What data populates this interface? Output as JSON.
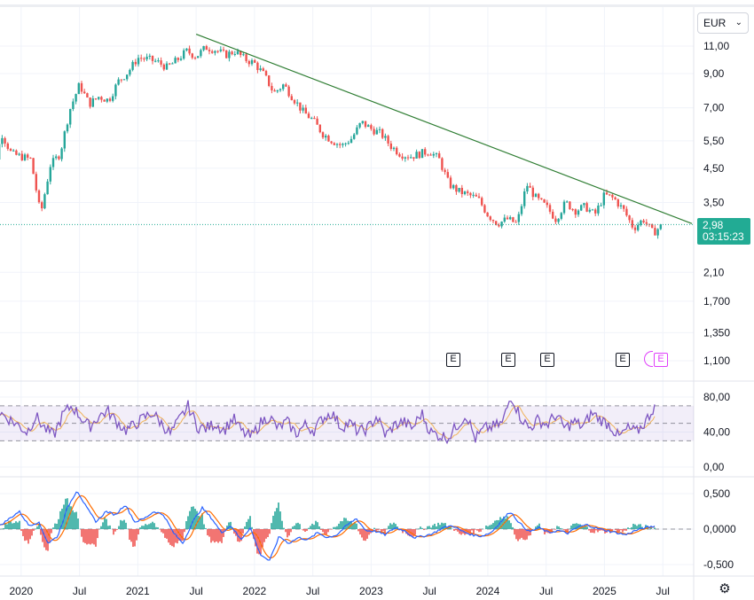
{
  "currency_button": {
    "label": "EUR",
    "chevron_icon": "chevron-down-icon"
  },
  "price_label": {
    "price": "2,98",
    "countdown": "03:15:23"
  },
  "earnings_markers": [
    {
      "label": "E",
      "left": 503
    },
    {
      "label": "E",
      "left": 565
    },
    {
      "label": "E",
      "left": 609
    },
    {
      "label": "E",
      "left": 694
    },
    {
      "label": "E",
      "left": 737,
      "future": true
    }
  ],
  "settings_icon": "gear-icon",
  "colors": {
    "up": "#26a69a",
    "down": "#ef5350",
    "trendline": "#2e7d32",
    "rsi": "#7e57c2",
    "rsi_ma": "#f0b35a",
    "macd": "#2962ff",
    "signal": "#ff6d00",
    "price_tag": "#22ab94"
  },
  "chart_data": [
    {
      "type": "candlestick",
      "title": "",
      "scale": "log",
      "yticks": [
        "11,00",
        "9,00",
        "7,00",
        "5,50",
        "4,50",
        "3,50",
        "2,10",
        "1,700",
        "1,350",
        "1,100"
      ],
      "ytick_values": [
        11.0,
        9.0,
        7.0,
        5.5,
        4.5,
        3.5,
        2.1,
        1.7,
        1.35,
        1.1
      ],
      "xticks": [
        "2020",
        "Jul",
        "2021",
        "Jul",
        "2022",
        "Jul",
        "2023",
        "Jul",
        "2024",
        "Jul",
        "2025",
        "Jul"
      ],
      "xtick_dates": [
        "2020-01",
        "2020-07",
        "2021-01",
        "2021-07",
        "2022-01",
        "2022-07",
        "2023-01",
        "2023-07",
        "2024-01",
        "2024-07",
        "2025-01",
        "2025-07"
      ],
      "x_range": [
        "2019-09",
        "2025-12"
      ],
      "series_close": [
        [
          "2019-09",
          3.6
        ],
        [
          "2019-10",
          4.2
        ],
        [
          "2019-11",
          5.8
        ],
        [
          "2019-12",
          5.0
        ],
        [
          "2020-01",
          4.9
        ],
        [
          "2020-02",
          4.8
        ],
        [
          "2020-03",
          3.2
        ],
        [
          "2020-04",
          4.6
        ],
        [
          "2020-05",
          5.0
        ],
        [
          "2020-06",
          6.9
        ],
        [
          "2020-07",
          8.3
        ],
        [
          "2020-08",
          7.2
        ],
        [
          "2020-09",
          7.6
        ],
        [
          "2020-10",
          7.4
        ],
        [
          "2020-11",
          8.5
        ],
        [
          "2020-12",
          9.1
        ],
        [
          "2021-01",
          10.1
        ],
        [
          "2021-02",
          10.0
        ],
        [
          "2021-03",
          9.8
        ],
        [
          "2021-04",
          9.4
        ],
        [
          "2021-05",
          9.9
        ],
        [
          "2021-06",
          10.6
        ],
        [
          "2021-07",
          10.2
        ],
        [
          "2021-08",
          10.9
        ],
        [
          "2021-09",
          10.7
        ],
        [
          "2021-10",
          10.3
        ],
        [
          "2021-11",
          10.6
        ],
        [
          "2021-12",
          10.0
        ],
        [
          "2022-01",
          9.7
        ],
        [
          "2022-02",
          8.9
        ],
        [
          "2022-03",
          7.8
        ],
        [
          "2022-04",
          8.3
        ],
        [
          "2022-05",
          7.5
        ],
        [
          "2022-06",
          6.8
        ],
        [
          "2022-07",
          6.4
        ],
        [
          "2022-08",
          5.8
        ],
        [
          "2022-09",
          5.5
        ],
        [
          "2022-10",
          5.3
        ],
        [
          "2022-11",
          5.6
        ],
        [
          "2022-12",
          6.3
        ],
        [
          "2023-01",
          6.0
        ],
        [
          "2023-02",
          5.8
        ],
        [
          "2023-03",
          5.3
        ],
        [
          "2023-04",
          5.0
        ],
        [
          "2023-05",
          4.9
        ],
        [
          "2023-06",
          5.0
        ],
        [
          "2023-07",
          5.1
        ],
        [
          "2023-08",
          4.8
        ],
        [
          "2023-09",
          4.0
        ],
        [
          "2023-10",
          3.8
        ],
        [
          "2023-11",
          3.7
        ],
        [
          "2023-12",
          3.6
        ],
        [
          "2024-01",
          3.2
        ],
        [
          "2024-02",
          3.0
        ],
        [
          "2024-03",
          3.1
        ],
        [
          "2024-04",
          3.0
        ],
        [
          "2024-05",
          4.0
        ],
        [
          "2024-06",
          3.6
        ],
        [
          "2024-07",
          3.4
        ],
        [
          "2024-08",
          3.1
        ],
        [
          "2024-09",
          3.5
        ],
        [
          "2024-10",
          3.3
        ],
        [
          "2024-11",
          3.4
        ],
        [
          "2024-12",
          3.2
        ],
        [
          "2025-01",
          3.7
        ],
        [
          "2025-02",
          3.6
        ],
        [
          "2025-03",
          3.3
        ],
        [
          "2025-04",
          2.9
        ],
        [
          "2025-05",
          3.1
        ],
        [
          "2025-06",
          2.8
        ],
        [
          "2025-07",
          2.98
        ]
      ],
      "trendline": {
        "from": [
          "2021-07",
          12.0
        ],
        "to": [
          "2025-10",
          3.0
        ]
      },
      "last_price": 2.98
    },
    {
      "type": "line",
      "name": "",
      "ylim": [
        0,
        100
      ],
      "yticks": [
        "80,00",
        "40,00",
        "0,00"
      ],
      "ytick_values": [
        80,
        40,
        0
      ],
      "band": [
        30,
        70
      ],
      "midline": 50,
      "values": [
        62,
        55,
        48,
        40,
        58,
        44,
        36,
        60,
        70,
        57,
        46,
        58,
        64,
        52,
        42,
        48,
        56,
        62,
        50,
        38,
        54,
        70,
        46,
        44,
        50,
        42,
        56,
        40,
        34,
        50,
        58,
        44,
        52,
        38,
        48,
        42,
        56,
        62,
        46,
        50,
        40,
        44,
        58,
        36,
        48,
        52,
        44,
        62,
        40,
        36,
        34,
        48,
        60,
        32,
        44,
        46,
        50,
        82,
        58,
        44,
        54,
        48,
        60,
        44,
        52,
        46,
        62,
        54,
        48,
        34,
        44,
        40,
        52,
        70
      ]
    },
    {
      "type": "line",
      "name": "",
      "ylim": [
        -0.6,
        0.7
      ],
      "yticks": [
        "0,500",
        "0,0000",
        "-0,500"
      ],
      "ytick_values": [
        0.5,
        0.0,
        -0.5
      ],
      "macd": [
        0.05,
        0.15,
        0.25,
        0.05,
        0.1,
        -0.2,
        -0.1,
        0.3,
        0.55,
        0.3,
        0.1,
        0.25,
        0.2,
        0.35,
        0.1,
        0.15,
        0.25,
        0.2,
        -0.05,
        -0.2,
        0.1,
        0.3,
        0.15,
        -0.05,
        0.05,
        -0.15,
        0.02,
        -0.35,
        -0.45,
        -0.1,
        -0.2,
        -0.12,
        -0.15,
        -0.05,
        -0.12,
        -0.08,
        0.05,
        0.15,
        -0.02,
        -0.03,
        -0.08,
        0.02,
        -0.02,
        -0.12,
        -0.1,
        -0.06,
        0.02,
        0.05,
        -0.03,
        -0.08,
        -0.1,
        -0.05,
        0.1,
        0.25,
        0.08,
        -0.04,
        0.02,
        -0.05,
        -0.02,
        -0.06,
        0.03,
        0.06,
        0.01,
        -0.02,
        -0.05,
        -0.08,
        -0.02,
        0.02,
        0.04
      ],
      "signal_offset": 0.03
    }
  ]
}
